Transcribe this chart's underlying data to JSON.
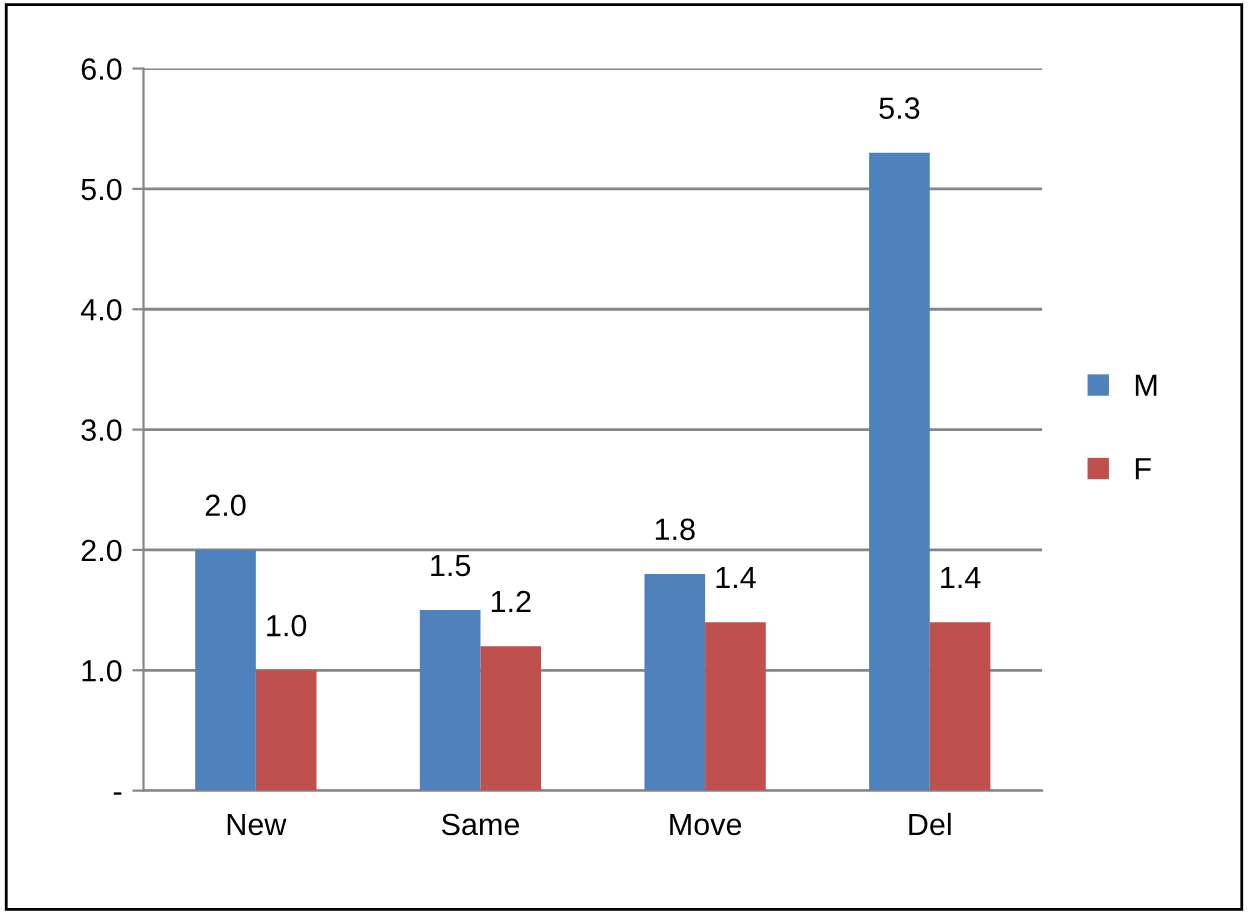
{
  "chart_data": {
    "type": "bar",
    "categories": [
      "New",
      "Same",
      "Move",
      "Del"
    ],
    "series": [
      {
        "name": "M",
        "color": "#4f81bd",
        "values": [
          2.0,
          1.5,
          1.8,
          5.3
        ],
        "value_labels": [
          "2.0",
          "1.5",
          "1.8",
          "5.3"
        ]
      },
      {
        "name": "F",
        "color": "#c0504d",
        "values": [
          1.0,
          1.2,
          1.4,
          1.4
        ],
        "value_labels": [
          "1.0",
          "1.2",
          "1.4",
          "1.4"
        ]
      }
    ],
    "ylim": [
      0,
      6
    ],
    "yticks": [
      {
        "value": 0,
        "label": "-"
      },
      {
        "value": 1,
        "label": "1.0"
      },
      {
        "value": 2,
        "label": "2.0"
      },
      {
        "value": 3,
        "label": "3.0"
      },
      {
        "value": 4,
        "label": "4.0"
      },
      {
        "value": 5,
        "label": "5.0"
      },
      {
        "value": 6,
        "label": "6.0"
      }
    ],
    "grid": "y",
    "legend": "right"
  }
}
